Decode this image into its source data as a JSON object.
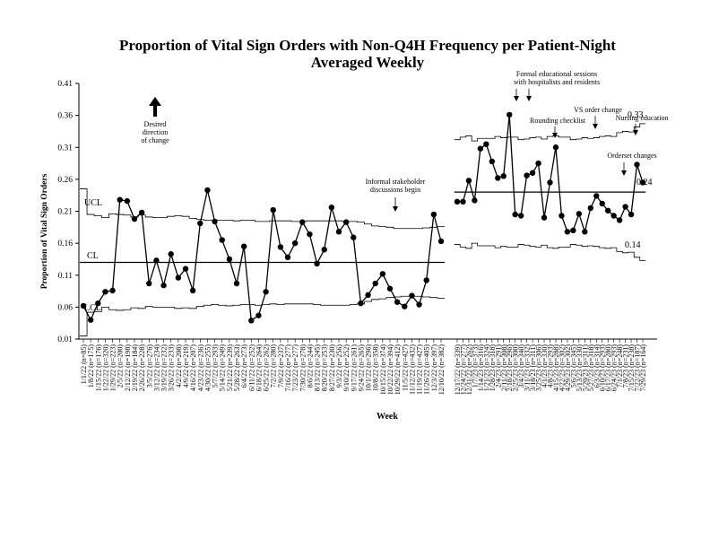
{
  "chart_data": {
    "type": "line",
    "chart_kind": "statistical process control (p-chart)",
    "title_line1": "Proportion of Vital Sign Orders with Non-Q4H Frequency per Patient-Night",
    "title_line2": "Averaged Weekly",
    "ylabel": "Proportion of Vital Sign Orders",
    "xlabel": "Week",
    "ylim": [
      0.01,
      0.41
    ],
    "yticks": [
      "0.01",
      "0.06",
      "0.11",
      "0.16",
      "0.21",
      "0.26",
      "0.31",
      "0.36",
      "0.41"
    ],
    "grid": false,
    "legend": "none",
    "colors": {
      "line": "#000000",
      "limits": "#000000",
      "background": "#ffffff"
    },
    "phase1": {
      "categories": [
        "1/1/22 (n=85)",
        "1/8/22 (n=175)",
        "1/15/22 (n=176)",
        "1/22/22 (n=320)",
        "1/29/22 (n=223)",
        "2/5/22 (n=200)",
        "2/12/22 (n=198)",
        "2/19/22 (n=184)",
        "2/26/22 (n=228)",
        "3/5/22 (n=276)",
        "3/12/22 (n=234)",
        "3/19/22 (n=232)",
        "3/26/22 (n=233)",
        "4/2/22 (n=208)",
        "4/9/22 (n=219)",
        "4/16/22 (n=207)",
        "4/23/22 (n=236)",
        "4/30/22 (n=255)",
        "5/7/22 (n=293)",
        "5/14/22 (n=249)",
        "5/21/22 (n=239)",
        "5/28/22 (n=263)",
        "6/4/22 (n=273)",
        "6/11/22 (n=252)",
        "6/18/22 (n=264)",
        "6/25/22 (n=262)",
        "7/2/22 (n=280)",
        "7/9/22 (n=237)",
        "7/16/22 (n=277)",
        "7/23/22 (n=277)",
        "7/30/22 (n=278)",
        "8/6/22 (n=244)",
        "8/13/22 (n=245)",
        "8/20/22 (n=253)",
        "8/27/22 (n=230)",
        "9/3/22 (n=256)",
        "9/10/22 (n=252)",
        "9/17/22 (n=261)",
        "9/24/22 (n=265)",
        "10/1/22 (n=296)",
        "10/8/22 (n=358)",
        "10/15/22 (n=374)",
        "10/22/22 (n=394)",
        "10/29/22 (n=412)",
        "11/5/22 (n=427)",
        "11/12/22 (n=432)",
        "11/19/22 (n=427)",
        "11/26/22 (n=405)",
        "12/3/22 (n=397)",
        "12/10/22 (n=382)"
      ],
      "xtick_labels": [
        "1/1/22 (n=85)",
        "1/8/22 (n=175)",
        "1/15/22 (n=176)",
        "1/22/22 (n=320)",
        "1/29/22 (n=223)",
        "2/5/22 (n=200)",
        "2/12/22 (n=198)",
        "2/19/22 (n=184)",
        "2/26/22 (n=228)",
        "3/5/22 (n=276)",
        "3/12/22 (n=234)",
        "3/19/22 (n=232)",
        "3/26/22 (n=233)",
        "4/2/22 (n=208)",
        "4/9/22 (n=219)",
        "4/16/22 (n=207)",
        "4/23/22 (n=236)",
        "4/30/22 (n=255)",
        "5/7/22 (n=293)",
        "5/14/22 (n=249)",
        "5/21/22 (n=239)",
        "5/28/22 (n=263)",
        "6/4/22 (n=273)",
        "6/11/22 (n=252)",
        "6/18/22 (n=264)",
        "6/25/22 (n=262)",
        "7/2/22 (n=280)",
        "7/9/22 (n=237)",
        "7/16/22 (n=277)",
        "7/23/22 (n=277)",
        "7/30/22 (n=278)",
        "8/6/22 (n=244)",
        "8/13/22 (n=245)",
        "8/20/22 (n=253)",
        "8/27/22 (n=230)",
        "9/3/22 (n=256)",
        "9/10/22 (n=252)",
        "9/17/22 (n=261)",
        "9/24/22 (n=265)",
        "10/1/22 (n=296)",
        "10/8/22 (n=358)",
        "10/15/22 (n=374)",
        "10/22/22 (n=394)",
        "10/29/22 (n=412)",
        "11/5/22 (n=427)",
        "11/12/22 (n=432)",
        "11/19/22 (n=427)",
        "11/26/22 (n=405)",
        "12/3/22 (n=397)",
        "12/10/22 (n=382)"
      ],
      "values": [
        0.062,
        0.04,
        0.066,
        0.084,
        0.086,
        0.228,
        0.226,
        0.198,
        0.208,
        0.097,
        0.133,
        0.094,
        0.143,
        0.106,
        0.12,
        0.086,
        0.191,
        0.243,
        0.194,
        0.165,
        0.135,
        0.097,
        0.155,
        0.039,
        0.047,
        0.084,
        0.212,
        0.154,
        0.138,
        0.16,
        0.193,
        0.174,
        0.128,
        0.15,
        0.216,
        0.178,
        0.193,
        0.169,
        0.066,
        0.079,
        0.097,
        0.112,
        0.089,
        0.068,
        0.061,
        0.078,
        0.064,
        0.102,
        0.205,
        0.163
      ],
      "cl": 0.13,
      "ucl": [
        0.245,
        0.205,
        0.203,
        0.2,
        0.206,
        0.205,
        0.204,
        0.201,
        0.204,
        0.201,
        0.2,
        0.2,
        0.202,
        0.203,
        0.202,
        0.199,
        0.197,
        0.196,
        0.196,
        0.196,
        0.196,
        0.195,
        0.196,
        0.196,
        0.194,
        0.194,
        0.195,
        0.195,
        0.195,
        0.194,
        0.194,
        0.195,
        0.195,
        0.195,
        0.195,
        0.195,
        0.194,
        0.194,
        0.193,
        0.19,
        0.187,
        0.186,
        0.185,
        0.183,
        0.183,
        0.183,
        0.183,
        0.184,
        0.185,
        0.186
      ],
      "lcl": [
        0.015,
        0.052,
        0.053,
        0.06,
        0.056,
        0.055,
        0.056,
        0.059,
        0.058,
        0.061,
        0.06,
        0.06,
        0.06,
        0.058,
        0.059,
        0.058,
        0.061,
        0.063,
        0.064,
        0.063,
        0.062,
        0.063,
        0.064,
        0.064,
        0.063,
        0.064,
        0.065,
        0.064,
        0.065,
        0.065,
        0.065,
        0.065,
        0.064,
        0.063,
        0.063,
        0.063,
        0.063,
        0.064,
        0.065,
        0.069,
        0.072,
        0.073,
        0.075,
        0.076,
        0.077,
        0.077,
        0.077,
        0.076,
        0.075,
        0.074
      ]
    },
    "phase2": {
      "categories": [
        "12/17/22 (n=339)",
        "12/24/22 (n=277)",
        "12/31/22 (n=262)",
        "1/7/23 (n=373)",
        "1/14/23 (n=316)",
        "1/21/23 (n=324)",
        "1/28/23 (n=318)",
        "2/4/23 (n=291)",
        "2/11/23 (n=308)",
        "2/18/23 (n=296)",
        "2/25/23 (n=300)",
        "3/4/23 (n=340)",
        "3/11/23 (n=332)",
        "3/18/23 (n=311)",
        "3/25/23 (n=306)",
        "4/1/23 (n=330)",
        "4/8/23 (n=293)",
        "4/15/23 (n=288)",
        "4/22/23 (n=302)",
        "4/29/23 (n=302)",
        "5/6/23 (n=345)",
        "5/13/23 (n=330)",
        "5/20/23 (n=311)",
        "5/27/23 (n=318)",
        "6/3/23 (n=314)",
        "6/10/23 (n=293)",
        "6/17/23 (n=280)",
        "6/24/23 (n=293)",
        "7/1/23 (n=248)",
        "7/8/23 (n=231)",
        "7/15/23 (n=238)",
        "7/22/23 (n=187)",
        "7/29/23 (n=164)"
      ],
      "xtick_labels": [
        "12/17/22 (n=339)",
        "12/24/22 (n=277)",
        "12/31/22 (n=262)",
        "1/7/23 (n=373)",
        "1/14/23 (n=316)",
        "1/21/23 (n=324)",
        "1/28/23 (n=318)",
        "2/4/23 (n=291)",
        "2/11/23 (n=308)",
        "2/18/23 (n=296)",
        "2/25/23 (n=300)",
        "3/4/23 (n=340)",
        "3/11/23 (n=332)",
        "3/18/23 (n=311)",
        "3/25/23 (n=306)",
        "4/1/23 (n=330)",
        "4/8/23 (n=293)",
        "4/15/23 (n=288)",
        "4/22/23 (n=302)",
        "4/29/23 (n=302)",
        "5/6/23 (n=345)",
        "5/13/23 (n=330)",
        "5/20/23 (n=311)",
        "5/27/23 (n=318)",
        "6/3/23 (n=314)",
        "6/10/23 (n=293)",
        "6/17/23 (n=280)",
        "6/24/23 (n=293)",
        "7/1/23 (n=248)",
        "7/8/23 (n=231)",
        "7/15/23 (n=238)",
        "7/22/23 (n=187)",
        "7/29/23 (n=164)"
      ],
      "values": [
        0.225,
        0.225,
        0.258,
        0.227,
        0.308,
        0.315,
        0.288,
        0.262,
        0.265,
        0.361,
        0.205,
        0.203,
        0.266,
        0.27,
        0.285,
        0.2,
        0.255,
        0.31,
        0.203,
        0.178,
        0.18,
        0.206,
        0.178,
        0.215,
        0.234,
        0.222,
        0.211,
        0.203,
        0.196,
        0.217,
        0.205,
        0.283,
        0.255
      ],
      "cl": 0.24,
      "ucl": [
        0.322,
        0.326,
        0.328,
        0.32,
        0.324,
        0.324,
        0.324,
        0.327,
        0.325,
        0.326,
        0.326,
        0.322,
        0.323,
        0.325,
        0.326,
        0.323,
        0.327,
        0.328,
        0.326,
        0.326,
        0.322,
        0.323,
        0.325,
        0.324,
        0.325,
        0.327,
        0.328,
        0.327,
        0.333,
        0.335,
        0.334,
        0.342,
        0.347
      ],
      "lcl": [
        0.158,
        0.154,
        0.152,
        0.16,
        0.156,
        0.156,
        0.156,
        0.153,
        0.155,
        0.154,
        0.154,
        0.158,
        0.157,
        0.155,
        0.154,
        0.157,
        0.153,
        0.152,
        0.154,
        0.154,
        0.158,
        0.157,
        0.155,
        0.156,
        0.155,
        0.153,
        0.152,
        0.153,
        0.147,
        0.145,
        0.146,
        0.138,
        0.133
      ],
      "cl_label": "0.24",
      "ucl_label": "0.33",
      "lcl_label": "0.14"
    },
    "phase1_line_labels": {
      "ucl": "UCL",
      "cl": "CL",
      "lcl": "LCL"
    },
    "annotations": {
      "desired_direction": [
        "Desired",
        "direction",
        "of change"
      ],
      "informal_stakeholder": [
        "Informal stakeholder",
        "discussions begin"
      ],
      "formal_education": [
        "Formal educational sessions",
        "with hospitalists and residents"
      ],
      "rounding_checklist": "Rounding checklist",
      "vs_order_change": "VS order change",
      "nursing_education": "Nursing education",
      "orderset_changes": "Orderset changes"
    }
  }
}
